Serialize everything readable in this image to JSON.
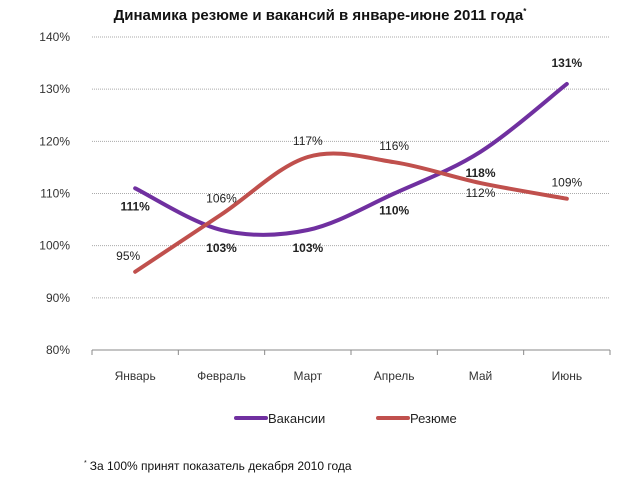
{
  "chart_data": {
    "type": "line",
    "title": "Динамика резюме и вакансий в январе-июне 2011 года",
    "title_mark": "*",
    "categories": [
      "Январь",
      "Февраль",
      "Март",
      "Апрель",
      "Май",
      "Июнь"
    ],
    "ylim": [
      80,
      140
    ],
    "yticks": [
      "80%",
      "90%",
      "100%",
      "110%",
      "120%",
      "130%",
      "140%"
    ],
    "ytick_values": [
      80,
      90,
      100,
      110,
      120,
      130,
      140
    ],
    "grid": true,
    "legend_position": "bottom",
    "series": [
      {
        "name": "Вакансии",
        "color": "#7030a0",
        "values": [
          111,
          103,
          103,
          110,
          118,
          131
        ],
        "labels": [
          "111%",
          "103%",
          "103%",
          "110%",
          "118%",
          "131%"
        ],
        "label_bold": true
      },
      {
        "name": "Резюме",
        "color": "#c0504d",
        "values": [
          95,
          106,
          117,
          116,
          112,
          109
        ],
        "labels": [
          "95%",
          "106%",
          "117%",
          "116%",
          "112%",
          "109%"
        ],
        "label_bold": false
      }
    ],
    "footnote_mark": "*",
    "footnote": "За 100% принят показатель декабря 2010 года"
  }
}
